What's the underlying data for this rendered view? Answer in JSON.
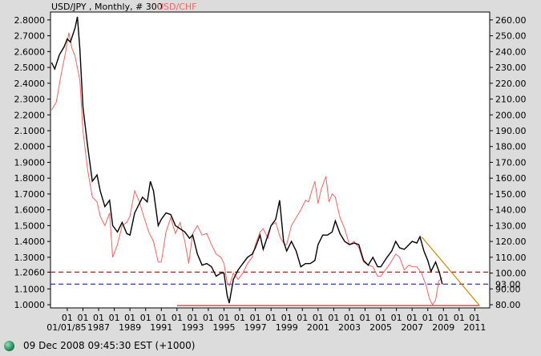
{
  "header": {
    "symbol_label": "USD/JPY , Monthly, # 300",
    "overlay_label": "USD/CHF"
  },
  "status": {
    "timestamp": "09 Dec 2008 09:45:30  EST (+1000)"
  },
  "colors": {
    "primary_series": "#000000",
    "overlay_series": "#ff6060",
    "support_line": "#aa2222",
    "current_line": "#3333cc",
    "trend_line": "#cc8800",
    "background": "#dcdcdc",
    "plot_bg": "#ffffff"
  },
  "chart_data": {
    "type": "line",
    "left_axis": {
      "min": 0.98,
      "max": 2.85,
      "ticks": [
        "2.8000",
        "2.7000",
        "2.6000",
        "2.5000",
        "2.4000",
        "2.3000",
        "2.2000",
        "2.1000",
        "2.0000",
        "1.9000",
        "1.8000",
        "1.7000",
        "1.6000",
        "1.5000",
        "1.4000",
        "1.3000",
        "1.2060",
        "1.1000",
        "1.0000"
      ]
    },
    "right_axis": {
      "min": 78,
      "max": 265,
      "ticks": [
        "260.00",
        "250.00",
        "240.00",
        "230.00",
        "220.00",
        "210.00",
        "200.00",
        "190.00",
        "180.00",
        "170.00",
        "160.00",
        "150.00",
        "140.00",
        "130.00",
        "120.00",
        "110.00",
        "100.00",
        "90.00",
        "80.00"
      ],
      "current_value_label": "93.00"
    },
    "x_axis": {
      "tick_years": [
        1985,
        1986,
        1987,
        1988,
        1989,
        1990,
        1991,
        1992,
        1993,
        1994,
        1995,
        1996,
        1997,
        1998,
        1999,
        2000,
        2001,
        2002,
        2003,
        2004,
        2005,
        2006,
        2007,
        2008,
        2009,
        2010,
        2011
      ],
      "month_labels": [
        "01",
        "01",
        "01",
        "01",
        "01",
        "01",
        "01",
        "01",
        "01",
        "01",
        "01",
        "01",
        "01",
        "01",
        "01",
        "01",
        "01",
        "01",
        "01",
        "01",
        "01",
        "01",
        "01",
        "01",
        "01",
        "01",
        "01"
      ],
      "year_labels": [
        "01/01/85",
        "1987",
        "1989",
        "1991",
        "1993",
        "1995",
        "1997",
        "1999",
        "2001",
        "2003",
        "2005",
        "2007",
        "2009",
        "2011"
      ],
      "year_label_positions": [
        1985,
        1987,
        1989,
        1991,
        1993,
        1995,
        1997,
        1999,
        2001,
        2003,
        2005,
        2007,
        2009,
        2011
      ]
    },
    "series": [
      {
        "name": "USD/JPY",
        "axis": "right",
        "points": [
          [
            1984.0,
            233
          ],
          [
            1984.2,
            229
          ],
          [
            1984.5,
            238
          ],
          [
            1984.8,
            243
          ],
          [
            1985.0,
            248
          ],
          [
            1985.2,
            246
          ],
          [
            1985.5,
            255
          ],
          [
            1985.65,
            262
          ],
          [
            1985.8,
            242
          ],
          [
            1986.0,
            205
          ],
          [
            1986.3,
            180
          ],
          [
            1986.6,
            158
          ],
          [
            1986.9,
            162
          ],
          [
            1987.1,
            152
          ],
          [
            1987.4,
            142
          ],
          [
            1987.7,
            146
          ],
          [
            1987.9,
            130
          ],
          [
            1988.2,
            126
          ],
          [
            1988.5,
            132
          ],
          [
            1988.8,
            125
          ],
          [
            1989.0,
            124
          ],
          [
            1989.3,
            138
          ],
          [
            1989.6,
            144
          ],
          [
            1989.8,
            148
          ],
          [
            1990.1,
            145
          ],
          [
            1990.3,
            158
          ],
          [
            1990.5,
            152
          ],
          [
            1990.8,
            130
          ],
          [
            1991.0,
            134
          ],
          [
            1991.3,
            138
          ],
          [
            1991.6,
            137
          ],
          [
            1991.9,
            130
          ],
          [
            1992.2,
            128
          ],
          [
            1992.5,
            126
          ],
          [
            1992.8,
            122
          ],
          [
            1993.0,
            124
          ],
          [
            1993.3,
            112
          ],
          [
            1993.6,
            105
          ],
          [
            1993.9,
            106
          ],
          [
            1994.2,
            104
          ],
          [
            1994.5,
            98
          ],
          [
            1994.8,
            100
          ],
          [
            1995.0,
            100
          ],
          [
            1995.2,
            86
          ],
          [
            1995.33,
            81
          ],
          [
            1995.6,
            96
          ],
          [
            1995.9,
            102
          ],
          [
            1996.2,
            106
          ],
          [
            1996.5,
            110
          ],
          [
            1996.8,
            112
          ],
          [
            1997.0,
            116
          ],
          [
            1997.3,
            124
          ],
          [
            1997.5,
            115
          ],
          [
            1997.8,
            124
          ],
          [
            1998.0,
            130
          ],
          [
            1998.3,
            134
          ],
          [
            1998.55,
            146
          ],
          [
            1998.8,
            120
          ],
          [
            1999.0,
            114
          ],
          [
            1999.3,
            120
          ],
          [
            1999.6,
            114
          ],
          [
            1999.9,
            104
          ],
          [
            2000.2,
            106
          ],
          [
            2000.5,
            106
          ],
          [
            2000.8,
            108
          ],
          [
            2001.0,
            118
          ],
          [
            2001.3,
            124
          ],
          [
            2001.6,
            124
          ],
          [
            2001.9,
            126
          ],
          [
            2002.1,
            133
          ],
          [
            2002.4,
            125
          ],
          [
            2002.7,
            120
          ],
          [
            2003.0,
            118
          ],
          [
            2003.3,
            119
          ],
          [
            2003.6,
            118
          ],
          [
            2003.9,
            108
          ],
          [
            2004.2,
            105
          ],
          [
            2004.5,
            110
          ],
          [
            2004.8,
            104
          ],
          [
            2005.0,
            104
          ],
          [
            2005.4,
            110
          ],
          [
            2005.7,
            114
          ],
          [
            2005.95,
            120
          ],
          [
            2006.2,
            116
          ],
          [
            2006.5,
            115
          ],
          [
            2006.8,
            118
          ],
          [
            2007.0,
            120
          ],
          [
            2007.3,
            119
          ],
          [
            2007.5,
            123
          ],
          [
            2007.75,
            114
          ],
          [
            2008.0,
            108
          ],
          [
            2008.2,
            101
          ],
          [
            2008.5,
            107
          ],
          [
            2008.75,
            100
          ],
          [
            2008.93,
            93
          ]
        ]
      },
      {
        "name": "USD/CHF",
        "axis": "left",
        "points": [
          [
            1984.0,
            2.23
          ],
          [
            1984.3,
            2.28
          ],
          [
            1984.6,
            2.45
          ],
          [
            1984.9,
            2.6
          ],
          [
            1985.1,
            2.72
          ],
          [
            1985.3,
            2.62
          ],
          [
            1985.5,
            2.57
          ],
          [
            1985.8,
            2.42
          ],
          [
            1986.0,
            2.1
          ],
          [
            1986.3,
            1.85
          ],
          [
            1986.6,
            1.68
          ],
          [
            1986.9,
            1.65
          ],
          [
            1987.1,
            1.56
          ],
          [
            1987.4,
            1.5
          ],
          [
            1987.7,
            1.58
          ],
          [
            1987.9,
            1.3
          ],
          [
            1988.2,
            1.38
          ],
          [
            1988.5,
            1.5
          ],
          [
            1988.8,
            1.52
          ],
          [
            1989.0,
            1.56
          ],
          [
            1989.3,
            1.72
          ],
          [
            1989.6,
            1.65
          ],
          [
            1989.9,
            1.55
          ],
          [
            1990.2,
            1.46
          ],
          [
            1990.5,
            1.4
          ],
          [
            1990.8,
            1.27
          ],
          [
            1991.0,
            1.27
          ],
          [
            1991.3,
            1.46
          ],
          [
            1991.6,
            1.55
          ],
          [
            1991.9,
            1.45
          ],
          [
            1992.2,
            1.52
          ],
          [
            1992.5,
            1.4
          ],
          [
            1992.75,
            1.26
          ],
          [
            1993.0,
            1.45
          ],
          [
            1993.3,
            1.5
          ],
          [
            1993.6,
            1.44
          ],
          [
            1993.9,
            1.45
          ],
          [
            1994.2,
            1.38
          ],
          [
            1994.5,
            1.32
          ],
          [
            1994.8,
            1.3
          ],
          [
            1995.0,
            1.26
          ],
          [
            1995.2,
            1.14
          ],
          [
            1995.35,
            1.12
          ],
          [
            1995.6,
            1.2
          ],
          [
            1995.9,
            1.16
          ],
          [
            1996.2,
            1.2
          ],
          [
            1996.5,
            1.26
          ],
          [
            1996.8,
            1.3
          ],
          [
            1997.0,
            1.38
          ],
          [
            1997.3,
            1.46
          ],
          [
            1997.5,
            1.48
          ],
          [
            1997.8,
            1.42
          ],
          [
            1998.0,
            1.5
          ],
          [
            1998.3,
            1.52
          ],
          [
            1998.6,
            1.42
          ],
          [
            1998.9,
            1.38
          ],
          [
            1999.0,
            1.38
          ],
          [
            1999.3,
            1.5
          ],
          [
            1999.6,
            1.55
          ],
          [
            1999.9,
            1.6
          ],
          [
            2000.2,
            1.66
          ],
          [
            2000.4,
            1.65
          ],
          [
            2000.6,
            1.72
          ],
          [
            2000.8,
            1.78
          ],
          [
            2001.0,
            1.64
          ],
          [
            2001.2,
            1.73
          ],
          [
            2001.5,
            1.81
          ],
          [
            2001.7,
            1.65
          ],
          [
            2001.9,
            1.7
          ],
          [
            2002.1,
            1.68
          ],
          [
            2002.4,
            1.55
          ],
          [
            2002.7,
            1.48
          ],
          [
            2003.0,
            1.38
          ],
          [
            2003.3,
            1.4
          ],
          [
            2003.6,
            1.36
          ],
          [
            2003.9,
            1.27
          ],
          [
            2004.2,
            1.25
          ],
          [
            2004.5,
            1.24
          ],
          [
            2004.8,
            1.18
          ],
          [
            2005.0,
            1.18
          ],
          [
            2005.3,
            1.22
          ],
          [
            2005.6,
            1.26
          ],
          [
            2005.95,
            1.32
          ],
          [
            2006.2,
            1.3
          ],
          [
            2006.5,
            1.22
          ],
          [
            2006.8,
            1.25
          ],
          [
            2007.0,
            1.24
          ],
          [
            2007.3,
            1.24
          ],
          [
            2007.6,
            1.2
          ],
          [
            2007.9,
            1.12
          ],
          [
            2008.1,
            1.04
          ],
          [
            2008.3,
            1.0
          ],
          [
            2008.5,
            1.03
          ],
          [
            2008.7,
            1.15
          ],
          [
            2008.93,
            1.17
          ]
        ]
      }
    ],
    "reference_lines": [
      {
        "name": "support",
        "axis": "left",
        "value": 1.206,
        "style": "dashed"
      },
      {
        "name": "current",
        "axis": "right",
        "value": 93.0,
        "style": "dashed"
      },
      {
        "name": "floor",
        "axis": "right",
        "value": 79.5,
        "from_year": 1992.0,
        "to_year": 2011.3,
        "style": "solid"
      }
    ],
    "trend_line": {
      "axis": "right",
      "from": [
        2007.6,
        123
      ],
      "to": [
        2011.3,
        79.5
      ]
    },
    "grid": false,
    "legend": "top-left"
  }
}
